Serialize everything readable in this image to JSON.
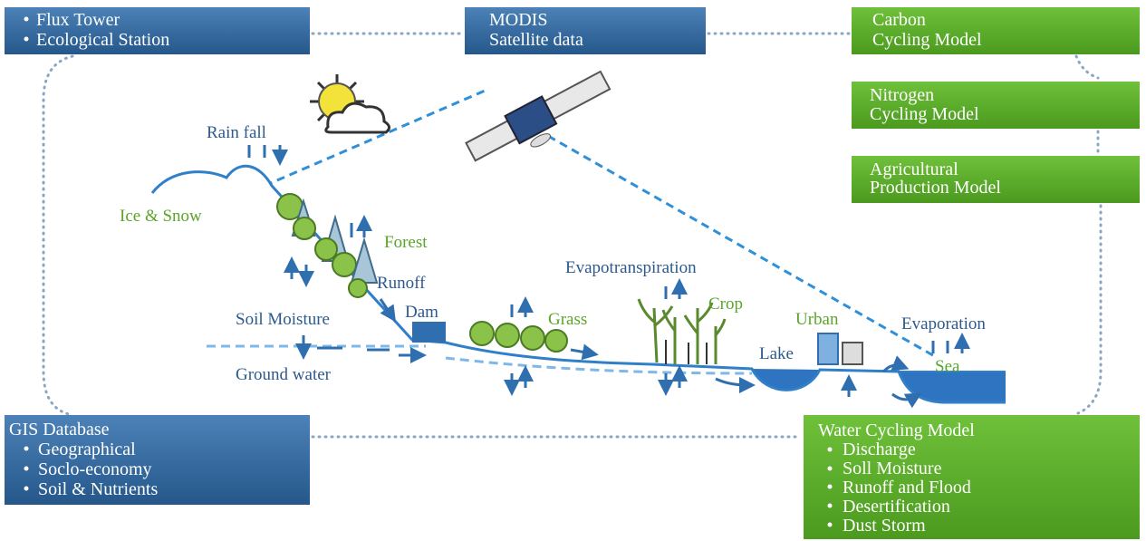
{
  "boxes": {
    "flux": {
      "items": [
        "Flux Tower",
        "Ecological Station"
      ]
    },
    "modis": {
      "lines": [
        "MODIS",
        "Satellite data"
      ]
    },
    "carbon": {
      "lines": [
        "Carbon",
        "Cycling Model"
      ]
    },
    "nitrogen": {
      "lines": [
        "Nitrogen",
        "Cycling Model"
      ]
    },
    "agricultural": {
      "lines": [
        "Agricultural",
        "Production Model"
      ]
    },
    "gis": {
      "title": "GIS Database",
      "items": [
        "Geographical",
        "Soclo-economy",
        "Soil & Nutrients"
      ]
    },
    "water": {
      "title": "Water Cycling Model",
      "items": [
        "Discharge",
        "Soll Moisture",
        "Runoff and Flood",
        "Desertification",
        "Dust Storm"
      ]
    }
  },
  "labels": {
    "rain_fall": "Rain fall",
    "ice_snow": "Ice & Snow",
    "forest": "Forest",
    "runoff": "Runoff",
    "soil_moisture": "Soil Moisture",
    "dam": "Dam",
    "ground_water": "Ground water",
    "grass": "Grass",
    "evapotranspiration": "Evapotranspiration",
    "crop": "Crop",
    "urban": "Urban",
    "lake": "Lake",
    "evaporation": "Evaporation",
    "sea": "Sea"
  }
}
